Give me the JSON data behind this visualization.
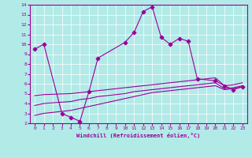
{
  "xlabel": "Windchill (Refroidissement éolien,°C)",
  "bg_color": "#b2eae8",
  "line_color": "#990099",
  "xlim": [
    -0.5,
    23.5
  ],
  "ylim": [
    2,
    14
  ],
  "xticks": [
    0,
    1,
    2,
    3,
    4,
    5,
    6,
    7,
    8,
    9,
    10,
    11,
    12,
    13,
    14,
    15,
    16,
    17,
    18,
    19,
    20,
    21,
    22,
    23
  ],
  "yticks": [
    2,
    3,
    4,
    5,
    6,
    7,
    8,
    9,
    10,
    11,
    12,
    13,
    14
  ],
  "series1_x": [
    0,
    1,
    3,
    4,
    5,
    6,
    7,
    10,
    11,
    12,
    13,
    14,
    15,
    16,
    17,
    18,
    20,
    21,
    22,
    23
  ],
  "series1_y": [
    9.5,
    10.0,
    3.0,
    2.6,
    2.2,
    5.2,
    8.6,
    10.2,
    11.2,
    13.3,
    13.8,
    10.7,
    10.0,
    10.6,
    10.3,
    6.5,
    6.3,
    5.8,
    5.4,
    5.7
  ],
  "series2_x": [
    0,
    1,
    4,
    5,
    6,
    7,
    8,
    9,
    10,
    11,
    12,
    13,
    14,
    15,
    16,
    17,
    18,
    19,
    20,
    21,
    22,
    23
  ],
  "series2_y": [
    4.8,
    4.9,
    5.0,
    5.1,
    5.2,
    5.3,
    5.4,
    5.5,
    5.6,
    5.7,
    5.8,
    5.9,
    6.0,
    6.1,
    6.2,
    6.3,
    6.4,
    6.5,
    6.6,
    5.8,
    5.9,
    6.1
  ],
  "series3_x": [
    0,
    1,
    4,
    5,
    6,
    7,
    8,
    9,
    10,
    11,
    12,
    13,
    14,
    15,
    16,
    17,
    18,
    19,
    20,
    21,
    22,
    23
  ],
  "series3_y": [
    3.8,
    4.0,
    4.2,
    4.4,
    4.5,
    4.7,
    4.8,
    4.9,
    5.0,
    5.2,
    5.3,
    5.4,
    5.5,
    5.6,
    5.7,
    5.8,
    5.9,
    6.0,
    6.1,
    5.5,
    5.6,
    5.8
  ],
  "series4_x": [
    0,
    1,
    4,
    5,
    6,
    7,
    8,
    9,
    10,
    11,
    12,
    13,
    14,
    15,
    16,
    17,
    18,
    19,
    20,
    21,
    22,
    23
  ],
  "series4_y": [
    2.8,
    3.0,
    3.3,
    3.5,
    3.7,
    3.9,
    4.1,
    4.3,
    4.5,
    4.7,
    4.9,
    5.1,
    5.2,
    5.3,
    5.4,
    5.5,
    5.6,
    5.7,
    5.8,
    5.4,
    5.5,
    5.7
  ]
}
